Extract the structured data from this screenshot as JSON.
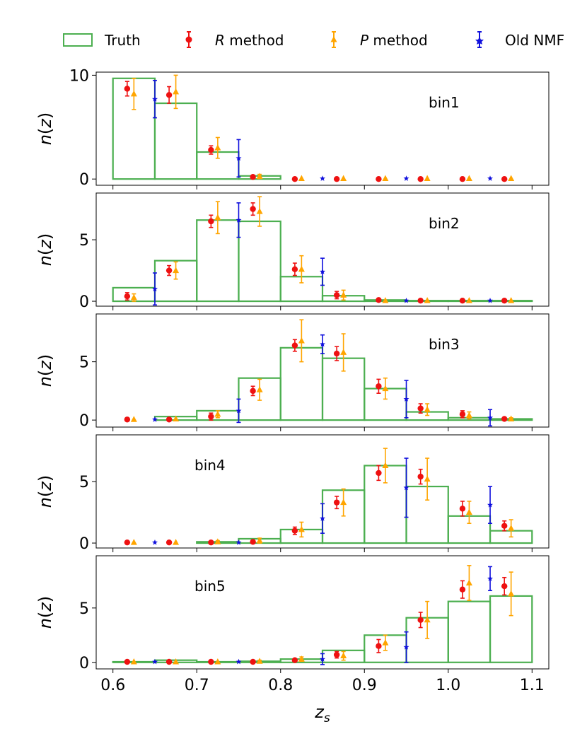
{
  "colors": {
    "truth": "#4caf50",
    "r_method": "#ee1111",
    "p_method": "#ffa500",
    "old_nmf": "#1010dd"
  },
  "legend": {
    "truth": "Truth",
    "r_method": "R method",
    "p_method": "P method",
    "old_nmf": "Old NMF"
  },
  "xlabel": "z_s",
  "ylabel": "n(z)",
  "x_ticks": [
    "0.6",
    "0.7",
    "0.8",
    "0.9",
    "1.0",
    "1.1"
  ],
  "chart_data": [
    {
      "type": "histogram-with-errorbars",
      "label": "bin1",
      "label_position": "upper-right",
      "xlim": [
        0.58,
        1.12
      ],
      "ylim": [
        -0.6,
        10.3
      ],
      "yticks": [
        0,
        10
      ],
      "bin_edges": [
        0.6,
        0.65,
        0.7,
        0.75,
        0.8,
        0.85,
        0.9,
        0.95,
        1.0,
        1.05,
        1.1
      ],
      "truth": [
        9.7,
        7.3,
        2.6,
        0.3,
        0,
        0,
        0,
        0,
        0,
        0
      ],
      "r_method": {
        "x": [
          0.617,
          0.667,
          0.717,
          0.767,
          0.817,
          0.867,
          0.917,
          0.967,
          1.017,
          1.067
        ],
        "y": [
          8.7,
          8.1,
          2.8,
          0.2,
          0,
          0,
          0,
          0,
          0,
          0
        ],
        "err": [
          0.7,
          0.8,
          0.4,
          0.1,
          0,
          0,
          0,
          0,
          0,
          0
        ]
      },
      "p_method": {
        "x": [
          0.625,
          0.675,
          0.725,
          0.775,
          0.825,
          0.875,
          0.925,
          0.975,
          1.025,
          1.075
        ],
        "y": [
          8.2,
          8.4,
          3.0,
          0.25,
          0.05,
          0.05,
          0.05,
          0.05,
          0.05,
          0.05
        ],
        "err": [
          1.5,
          1.6,
          1.0,
          0.2,
          0,
          0,
          0,
          0,
          0,
          0
        ]
      },
      "old_nmf": {
        "x": [
          0.65,
          0.75,
          0.85,
          0.95,
          1.05
        ],
        "y": [
          7.7,
          2.0,
          0.05,
          0.05,
          0.05
        ],
        "err": [
          1.8,
          1.8,
          0,
          0,
          0
        ]
      }
    },
    {
      "type": "histogram-with-errorbars",
      "label": "bin2",
      "label_position": "upper-right",
      "xlim": [
        0.58,
        1.12
      ],
      "ylim": [
        -0.4,
        8.8
      ],
      "yticks": [
        0,
        5
      ],
      "bin_edges": [
        0.6,
        0.65,
        0.7,
        0.75,
        0.8,
        0.85,
        0.9,
        0.95,
        1.0,
        1.05,
        1.1
      ],
      "truth": [
        1.1,
        3.3,
        6.6,
        6.5,
        2.0,
        0.45,
        0.1,
        0.05,
        0.05,
        0.05
      ],
      "r_method": {
        "x": [
          0.617,
          0.667,
          0.717,
          0.767,
          0.817,
          0.867,
          0.917,
          0.967,
          1.017,
          1.067
        ],
        "y": [
          0.4,
          2.5,
          6.5,
          7.5,
          2.6,
          0.5,
          0.1,
          0.05,
          0.05,
          0.05
        ],
        "err": [
          0.3,
          0.4,
          0.5,
          0.5,
          0.5,
          0.3,
          0,
          0,
          0,
          0
        ]
      },
      "p_method": {
        "x": [
          0.625,
          0.675,
          0.725,
          0.775,
          0.825,
          0.875,
          0.925,
          0.975,
          1.025,
          1.075
        ],
        "y": [
          0.3,
          2.5,
          6.8,
          7.3,
          2.6,
          0.5,
          0.05,
          0.05,
          0.05,
          0.05
        ],
        "err": [
          0.3,
          0.7,
          1.3,
          1.2,
          1.1,
          0.4,
          0,
          0,
          0,
          0
        ]
      },
      "old_nmf": {
        "x": [
          0.65,
          0.75,
          0.85,
          0.95,
          1.05
        ],
        "y": [
          1.0,
          6.6,
          2.4,
          0.05,
          0.05
        ],
        "err": [
          1.3,
          1.4,
          1.1,
          0,
          0
        ]
      }
    },
    {
      "type": "histogram-with-errorbars",
      "label": "bin3",
      "label_position": "upper-right",
      "xlim": [
        0.58,
        1.12
      ],
      "ylim": [
        -0.6,
        9.1
      ],
      "yticks": [
        0,
        5
      ],
      "bin_edges": [
        0.6,
        0.65,
        0.7,
        0.75,
        0.8,
        0.85,
        0.9,
        0.95,
        1.0,
        1.05,
        1.1
      ],
      "truth": [
        0,
        0.3,
        0.8,
        3.6,
        6.2,
        5.3,
        2.7,
        0.7,
        0.2,
        0.1
      ],
      "r_method": {
        "x": [
          0.617,
          0.667,
          0.717,
          0.767,
          0.817,
          0.867,
          0.917,
          0.967,
          1.017,
          1.067
        ],
        "y": [
          0.05,
          0.05,
          0.3,
          2.5,
          6.4,
          5.7,
          2.9,
          1.0,
          0.5,
          0.1
        ],
        "err": [
          0,
          0,
          0.3,
          0.4,
          0.5,
          0.6,
          0.6,
          0.4,
          0.3,
          0.1
        ]
      },
      "p_method": {
        "x": [
          0.625,
          0.675,
          0.725,
          0.775,
          0.825,
          0.875,
          0.925,
          0.975,
          1.025,
          1.075
        ],
        "y": [
          0.05,
          0.1,
          0.5,
          2.6,
          6.8,
          5.8,
          2.7,
          0.9,
          0.4,
          0.1
        ],
        "err": [
          0,
          0,
          0.3,
          0.9,
          1.8,
          1.6,
          0.9,
          0.5,
          0.3,
          0.1
        ]
      },
      "old_nmf": {
        "x": [
          0.65,
          0.75,
          0.85,
          0.95,
          1.05
        ],
        "y": [
          0.05,
          0.8,
          6.5,
          1.8,
          0.2
        ],
        "err": [
          0,
          1.0,
          0.8,
          1.6,
          0.7
        ]
      }
    },
    {
      "type": "histogram-with-errorbars",
      "label": "bin4",
      "label_position": "upper-left",
      "xlim": [
        0.58,
        1.12
      ],
      "ylim": [
        -0.4,
        8.8
      ],
      "yticks": [
        0,
        5
      ],
      "bin_edges": [
        0.6,
        0.65,
        0.7,
        0.75,
        0.8,
        0.85,
        0.9,
        0.95,
        1.0,
        1.05,
        1.1
      ],
      "truth": [
        0,
        0,
        0.1,
        0.35,
        1.1,
        4.3,
        6.3,
        4.6,
        2.2,
        1.0
      ],
      "r_method": {
        "x": [
          0.617,
          0.667,
          0.717,
          0.767,
          0.817,
          0.867,
          0.917,
          0.967,
          1.017,
          1.067
        ],
        "y": [
          0.05,
          0.05,
          0.05,
          0.1,
          1.0,
          3.3,
          5.7,
          5.4,
          2.8,
          1.4
        ],
        "err": [
          0,
          0,
          0,
          0.1,
          0.3,
          0.5,
          0.6,
          0.6,
          0.6,
          0.4
        ]
      },
      "p_method": {
        "x": [
          0.625,
          0.675,
          0.725,
          0.775,
          0.825,
          0.875,
          0.925,
          0.975,
          1.025,
          1.075
        ],
        "y": [
          0.05,
          0.05,
          0.1,
          0.2,
          1.1,
          3.3,
          6.3,
          5.2,
          2.5,
          1.2
        ],
        "err": [
          0,
          0,
          0.1,
          0.2,
          0.6,
          1.1,
          1.4,
          1.7,
          0.9,
          0.7
        ]
      },
      "old_nmf": {
        "x": [
          0.65,
          0.75,
          0.85,
          0.95,
          1.05
        ],
        "y": [
          0.05,
          0.05,
          2.0,
          4.5,
          3.1
        ],
        "err": [
          0,
          0,
          1.2,
          2.4,
          1.5
        ]
      }
    },
    {
      "type": "histogram-with-errorbars",
      "label": "bin5",
      "label_position": "upper-left",
      "xlim": [
        0.58,
        1.12
      ],
      "ylim": [
        -0.6,
        9.8
      ],
      "yticks": [
        0,
        5
      ],
      "bin_edges": [
        0.6,
        0.65,
        0.7,
        0.75,
        0.8,
        0.85,
        0.9,
        0.95,
        1.0,
        1.05,
        1.1
      ],
      "truth": [
        0.05,
        0.2,
        0.05,
        0.1,
        0.3,
        1.1,
        2.5,
        4.1,
        5.6,
        6.1
      ],
      "r_method": {
        "x": [
          0.617,
          0.667,
          0.717,
          0.767,
          0.817,
          0.867,
          0.917,
          0.967,
          1.017,
          1.067
        ],
        "y": [
          0.05,
          0.05,
          0.05,
          0.05,
          0.2,
          0.7,
          1.5,
          3.9,
          6.7,
          7.0
        ],
        "err": [
          0,
          0,
          0,
          0,
          0.1,
          0.3,
          0.6,
          0.7,
          0.8,
          0.8
        ]
      },
      "p_method": {
        "x": [
          0.625,
          0.675,
          0.725,
          0.775,
          0.825,
          0.875,
          0.925,
          0.975,
          1.025,
          1.075
        ],
        "y": [
          0.05,
          0.05,
          0.05,
          0.1,
          0.3,
          0.6,
          1.8,
          3.9,
          7.3,
          6.3
        ],
        "err": [
          0,
          0,
          0,
          0.1,
          0.2,
          0.4,
          0.7,
          1.7,
          1.6,
          2.0
        ]
      },
      "old_nmf": {
        "x": [
          0.65,
          0.75,
          0.85,
          0.95,
          1.05
        ],
        "y": [
          0.05,
          0.05,
          0.3,
          1.4,
          7.7
        ],
        "err": [
          0,
          0,
          0.5,
          1.4,
          1.1
        ]
      }
    }
  ]
}
